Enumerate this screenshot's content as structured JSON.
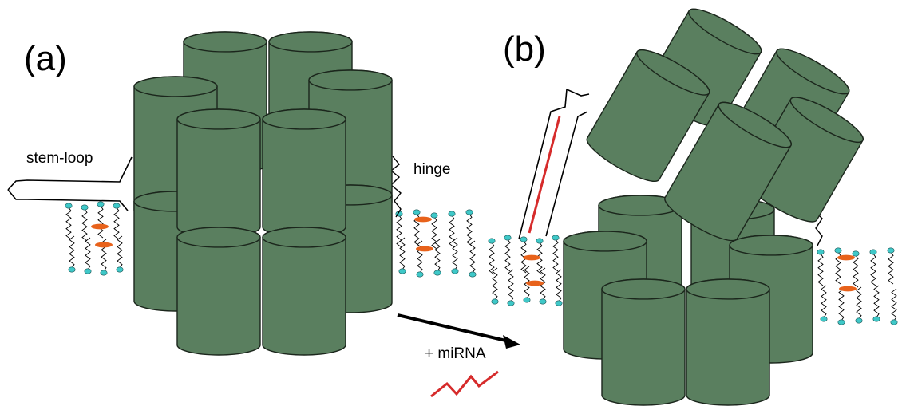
{
  "panels": {
    "a": {
      "label": "(a)"
    },
    "b": {
      "label": "(b)"
    }
  },
  "annotations": {
    "stem_loop": "stem-loop",
    "hinge": "hinge",
    "mirna": "+ miRNA"
  },
  "colors": {
    "barrel_fill": "#5a7f5f",
    "barrel_stroke": "#1b261c",
    "lipid_head": "#3fc8c8",
    "bridge": "#e8621b",
    "mirna_strand": "#d62b2b",
    "arrow": "#000000"
  },
  "icons": {
    "barrel": "cylinder",
    "lipid": "lipid-molecule",
    "arrow": "reaction-arrow"
  }
}
